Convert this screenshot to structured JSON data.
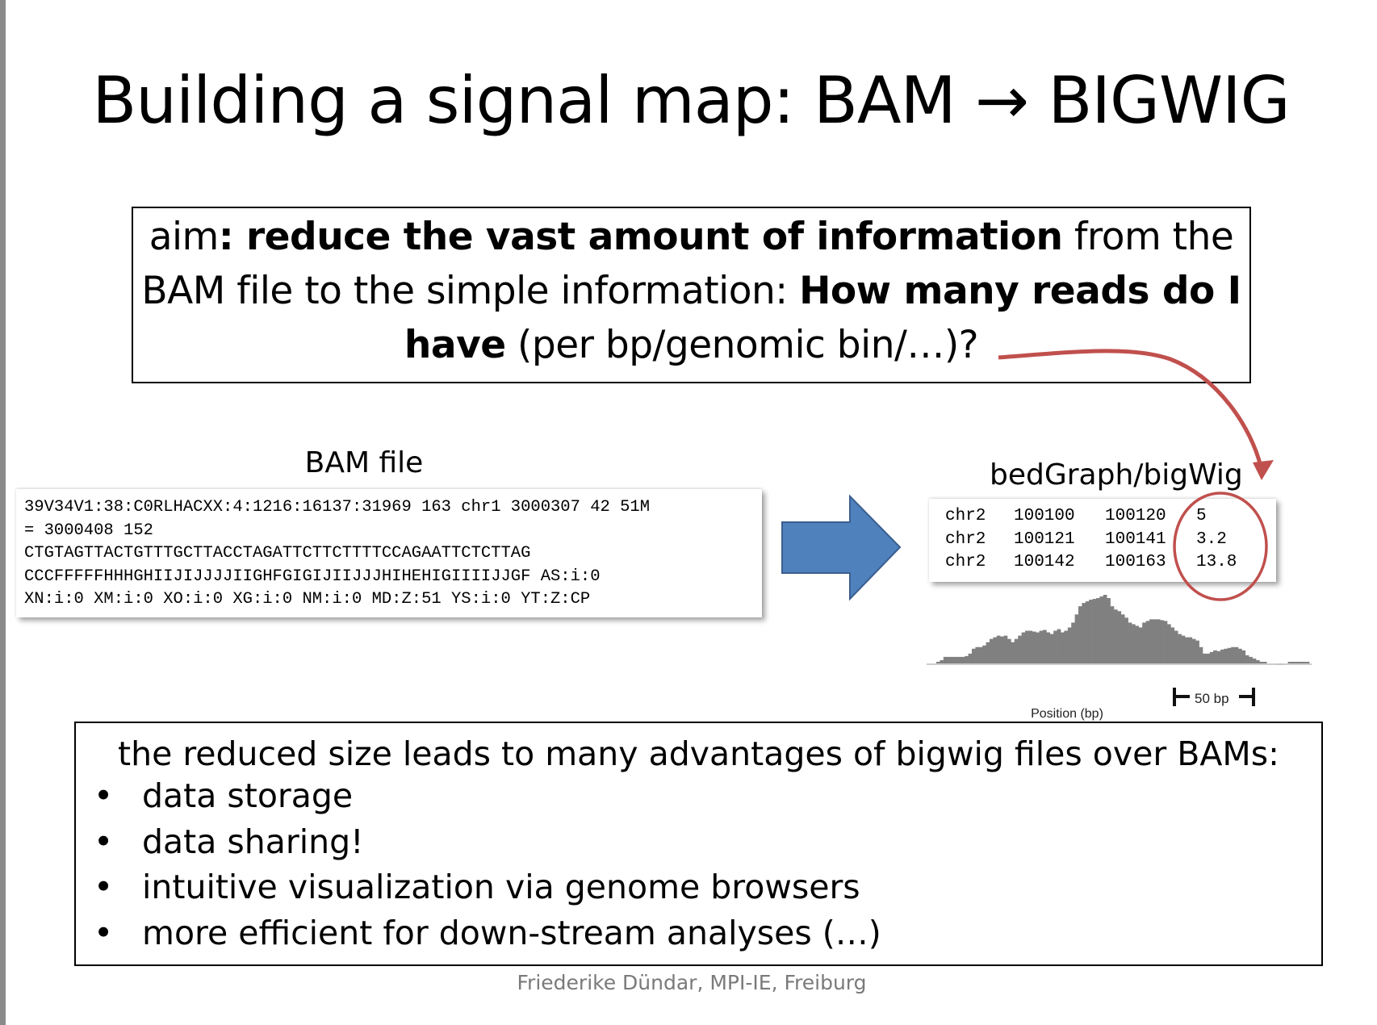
{
  "title": "Building a signal map: BAM → BIGWIG",
  "aim": {
    "p1": "aim",
    "b1": ": reduce the vast amount of information",
    "p2": " from the BAM file to the simple information: ",
    "b2": "How many reads do I have",
    "p3": " (per bp/genomic bin/…)?"
  },
  "bam": {
    "label": "BAM file",
    "lines": [
      "39V34V1:38:C0RLHACXX:4:1216:16137:31969 163 chr1 3000307 42 51M",
      "= 3000408 152",
      "CTGTAGTTACTGTTTGCTTACCTAGATTCTTCTTTTCCAGAATTCTCTTAG",
      "CCCFFFFFHHHGHIIJIJJJJIIGHFGIGIJIIJJJHIHEHIGIIIIJJGF AS:i:0",
      "XN:i:0 XM:i:0 XO:i:0 XG:i:0 NM:i:0 MD:Z:51 YS:i:0 YT:Z:CP"
    ]
  },
  "bedgraph": {
    "label": "bedGraph/bigWig",
    "rows": [
      [
        "chr2",
        "100100",
        "100120",
        "5"
      ],
      [
        "chr2",
        "100121",
        "100141",
        "3.2"
      ],
      [
        "chr2",
        "100142",
        "100163",
        "13.8"
      ]
    ],
    "scale_bar": "50 bp",
    "xlabel": "Position (bp)",
    "signal": [
      2,
      4,
      8,
      8,
      8,
      8,
      8,
      8,
      9,
      12,
      18,
      20,
      20,
      22,
      26,
      30,
      32,
      34,
      33,
      34,
      30,
      26,
      30,
      34,
      38,
      40,
      40,
      39,
      38,
      40,
      41,
      38,
      36,
      40,
      42,
      38,
      40,
      44,
      50,
      60,
      70,
      74,
      76,
      78,
      79,
      80,
      82,
      84,
      80,
      70,
      66,
      64,
      60,
      56,
      50,
      48,
      46,
      44,
      50,
      52,
      54,
      54,
      54,
      53,
      52,
      48,
      44,
      40,
      36,
      34,
      32,
      32,
      30,
      28,
      20,
      12,
      12,
      14,
      16,
      15,
      17,
      18,
      19,
      20,
      20,
      18,
      16,
      10,
      8,
      6,
      4,
      2,
      2,
      0,
      0,
      0,
      0,
      0,
      0,
      2,
      2,
      2,
      2,
      2,
      2
    ],
    "signal_color": "#808080"
  },
  "arrow_color": "#4f81bd",
  "highlight_color": "#c0504d",
  "bottom": {
    "heading": "the reduced size leads to many advantages of bigwig files over BAMs:",
    "bullet": "•",
    "items": [
      "data storage",
      "data sharing!",
      "intuitive visualization via genome browsers",
      "more efficient for down-stream analyses (…)"
    ]
  },
  "footer": "Friederike Dündar, MPI-IE, Freiburg"
}
